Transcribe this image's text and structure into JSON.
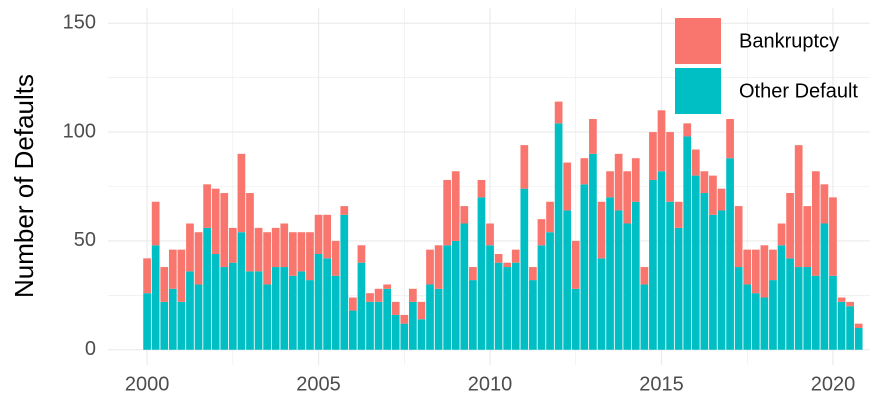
{
  "chart_data": {
    "type": "stacked-bar",
    "y_label": "Number of Defaults",
    "x": [
      2000,
      2000.25,
      2000.5,
      2000.75,
      2001,
      2001.25,
      2001.5,
      2001.75,
      2002,
      2002.25,
      2002.5,
      2002.75,
      2003,
      2003.25,
      2003.5,
      2003.75,
      2004,
      2004.25,
      2004.5,
      2004.75,
      2005,
      2005.25,
      2005.5,
      2005.75,
      2006,
      2006.25,
      2006.5,
      2006.75,
      2007,
      2007.25,
      2007.5,
      2007.75,
      2008,
      2008.25,
      2008.5,
      2008.75,
      2009,
      2009.25,
      2009.5,
      2009.75,
      2010,
      2010.25,
      2010.5,
      2010.75,
      2011,
      2011.25,
      2011.5,
      2011.75,
      2012,
      2012.25,
      2012.5,
      2012.75,
      2013,
      2013.25,
      2013.5,
      2013.75,
      2014,
      2014.25,
      2014.5,
      2014.75,
      2015,
      2015.25,
      2015.5,
      2015.75,
      2016,
      2016.25,
      2016.5,
      2016.75,
      2017,
      2017.25,
      2017.5,
      2017.75,
      2018,
      2018.25,
      2018.5,
      2018.75,
      2019,
      2019.25,
      2019.5,
      2019.75,
      2020,
      2020.25,
      2020.5,
      2020.75
    ],
    "series": [
      {
        "name": "Bankruptcy",
        "color": "#F8766D",
        "values": [
          16,
          20,
          16,
          18,
          24,
          22,
          24,
          20,
          30,
          34,
          16,
          36,
          36,
          20,
          24,
          18,
          20,
          20,
          18,
          22,
          18,
          20,
          16,
          4,
          6,
          8,
          4,
          6,
          2,
          6,
          4,
          6,
          8,
          16,
          20,
          30,
          32,
          8,
          6,
          8,
          10,
          4,
          2,
          6,
          20,
          6,
          12,
          14,
          10,
          22,
          22,
          12,
          16,
          26,
          12,
          26,
          24,
          20,
          8,
          22,
          28,
          32,
          12,
          6,
          12,
          10,
          18,
          10,
          18,
          28,
          16,
          20,
          24,
          14,
          10,
          30,
          56,
          28,
          48,
          18,
          36,
          2,
          2,
          2
        ]
      },
      {
        "name": "Other Default",
        "color": "#00BFC4",
        "values": [
          26,
          48,
          22,
          28,
          22,
          36,
          30,
          56,
          44,
          38,
          40,
          54,
          36,
          36,
          30,
          38,
          38,
          34,
          36,
          32,
          44,
          42,
          34,
          62,
          18,
          40,
          22,
          22,
          28,
          16,
          12,
          22,
          14,
          30,
          28,
          48,
          50,
          58,
          32,
          70,
          48,
          40,
          38,
          40,
          74,
          32,
          48,
          54,
          104,
          64,
          28,
          76,
          90,
          42,
          70,
          64,
          58,
          68,
          30,
          78,
          82,
          68,
          56,
          98,
          80,
          72,
          62,
          64,
          88,
          38,
          30,
          26,
          24,
          32,
          48,
          42,
          38,
          38,
          34,
          58,
          34,
          22,
          20,
          10
        ]
      }
    ],
    "xlim": [
      1998.86,
      2021.08
    ],
    "xticks": [
      2000,
      2005,
      2010,
      2015,
      2020
    ],
    "ylim": [
      -7,
      157
    ],
    "yticks": [
      0,
      50,
      100,
      150
    ],
    "grid": true,
    "legend": "top-right"
  }
}
